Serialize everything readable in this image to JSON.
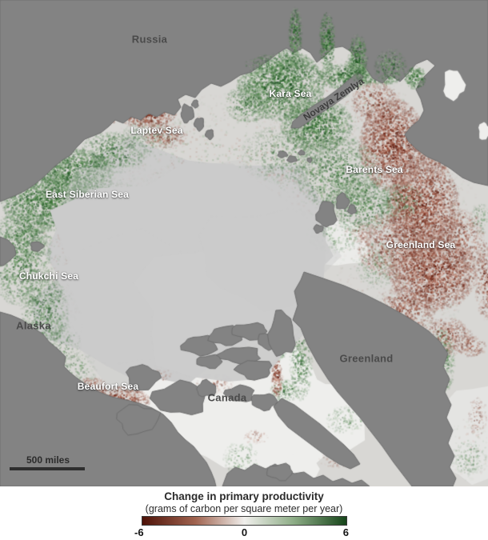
{
  "map": {
    "labels": {
      "russia": "Russia",
      "kara_sea": "Kara Sea",
      "novaya_zemlya": "Novaya Zemlya",
      "laptev_sea": "Laptev Sea",
      "east_siberian_sea": "East Siberian Sea",
      "barents_sea": "Barents Sea",
      "greenland_sea": "Greenland Sea",
      "chukchi_sea": "Chukchi Sea",
      "alaska": "Alaska",
      "beaufort_sea": "Beaufort Sea",
      "canada": "Canada",
      "greenland": "Greenland"
    },
    "scale_bar_label": "500 miles",
    "palette": {
      "land": "#838383",
      "land_edge": "#6e6e6e",
      "ice": "#cbcbcb",
      "ocean_base": "#d8d7d4",
      "channel_white": "#eeeeec",
      "greens": [
        "#1b5020",
        "#2c672c",
        "#477f42",
        "#6f9c68",
        "#9dbb95"
      ],
      "reds": [
        "#591508",
        "#7b2f1d",
        "#99523f",
        "#b87f6d",
        "#d6afa2"
      ]
    }
  },
  "legend": {
    "title": "Change in primary productivity",
    "subtitle": "(grams of carbon per square meter per year)",
    "ticks": [
      "-6",
      "0",
      "6"
    ],
    "gradient_stops": [
      "#4e1208",
      "#a0634f",
      "#f0efec",
      "#8ead87",
      "#16451a"
    ]
  }
}
